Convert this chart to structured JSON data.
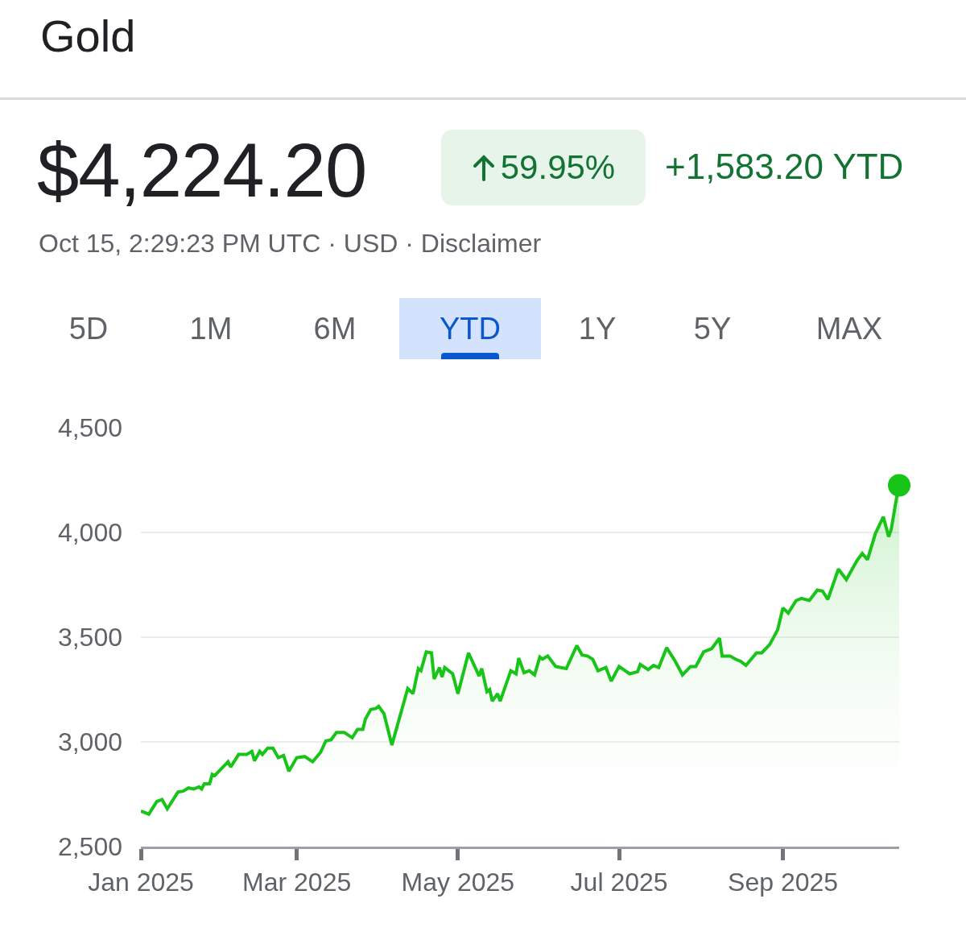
{
  "chart_data": {
    "type": "area",
    "title": "Gold",
    "subtitle": "Oct 15, 2:29:23 PM UTC · USD · Disclaimer",
    "annotations": [
      "$4,224.20",
      "59.95%",
      "+1,583.20 YTD",
      "5D",
      "1M",
      "6M",
      "YTD",
      "1Y",
      "5Y",
      "MAX"
    ],
    "x": [
      "2025-01-01",
      "2025-01-04",
      "2025-01-07",
      "2025-01-09",
      "2025-01-11",
      "2025-01-15",
      "2025-01-17",
      "2025-01-19",
      "2025-01-21",
      "2025-01-23",
      "2025-01-24",
      "2025-01-25",
      "2025-01-27",
      "2025-01-28",
      "2025-01-29",
      "2025-02-03",
      "2025-02-04",
      "2025-02-07",
      "2025-02-10",
      "2025-02-12",
      "2025-02-13",
      "2025-02-15",
      "2025-02-16",
      "2025-02-18",
      "2025-02-20",
      "2025-02-22",
      "2025-02-24",
      "2025-02-26",
      "2025-03-01",
      "2025-03-04",
      "2025-03-07",
      "2025-03-10",
      "2025-03-12",
      "2025-03-14",
      "2025-03-16",
      "2025-03-19",
      "2025-03-22",
      "2025-03-24",
      "2025-03-26",
      "2025-03-27",
      "2025-03-29",
      "2025-03-31",
      "2025-04-01",
      "2025-04-03",
      "2025-04-06",
      "2025-04-12",
      "2025-04-14",
      "2025-04-16",
      "2025-04-17",
      "2025-04-19",
      "2025-04-21",
      "2025-04-22",
      "2025-04-24",
      "2025-04-25",
      "2025-04-26",
      "2025-04-29",
      "2025-05-01",
      "2025-05-05",
      "2025-05-07",
      "2025-05-09",
      "2025-05-10",
      "2025-05-12",
      "2025-05-13",
      "2025-05-14",
      "2025-05-16",
      "2025-05-17",
      "2025-05-21",
      "2025-05-23",
      "2025-05-24",
      "2025-05-26",
      "2025-05-28",
      "2025-05-30",
      "2025-06-01",
      "2025-06-02",
      "2025-06-04",
      "2025-06-07",
      "2025-06-11",
      "2025-06-15",
      "2025-06-17",
      "2025-06-19",
      "2025-06-21",
      "2025-06-23",
      "2025-06-26",
      "2025-06-28",
      "2025-07-01",
      "2025-07-05",
      "2025-07-08",
      "2025-07-09",
      "2025-07-12",
      "2025-07-14",
      "2025-07-16",
      "2025-07-19",
      "2025-07-22",
      "2025-07-25",
      "2025-07-28",
      "2025-07-30",
      "2025-08-02",
      "2025-08-05",
      "2025-08-08",
      "2025-08-09",
      "2025-08-12",
      "2025-08-14",
      "2025-08-16",
      "2025-08-18",
      "2025-08-20",
      "2025-08-22",
      "2025-08-24",
      "2025-08-27",
      "2025-08-30",
      "2025-09-01",
      "2025-09-03",
      "2025-09-06",
      "2025-09-08",
      "2025-09-11",
      "2025-09-14",
      "2025-09-16",
      "2025-09-18",
      "2025-09-22",
      "2025-09-25",
      "2025-09-29",
      "2025-10-01",
      "2025-10-03",
      "2025-10-06",
      "2025-10-09",
      "2025-10-11",
      "2025-10-12",
      "2025-10-14",
      "2025-10-15"
    ],
    "series": [
      {
        "color": "#18c418",
        "values": [
          2670,
          2655,
          2715,
          2725,
          2680,
          2760,
          2765,
          2780,
          2775,
          2785,
          2775,
          2800,
          2800,
          2845,
          2840,
          2905,
          2880,
          2940,
          2940,
          2955,
          2910,
          2955,
          2940,
          2970,
          2970,
          2925,
          2935,
          2860,
          2925,
          2930,
          2905,
          2950,
          3005,
          3010,
          3045,
          3045,
          3020,
          3060,
          3060,
          3110,
          3155,
          3160,
          3170,
          3135,
          2985,
          3255,
          3230,
          3350,
          3340,
          3430,
          3425,
          3300,
          3355,
          3310,
          3355,
          3325,
          3230,
          3425,
          3370,
          3315,
          3350,
          3240,
          3250,
          3195,
          3230,
          3195,
          3340,
          3325,
          3400,
          3330,
          3340,
          3320,
          3405,
          3395,
          3410,
          3360,
          3350,
          3460,
          3415,
          3410,
          3395,
          3340,
          3355,
          3290,
          3360,
          3325,
          3335,
          3370,
          3345,
          3365,
          3355,
          3450,
          3390,
          3320,
          3360,
          3360,
          3430,
          3445,
          3495,
          3410,
          3410,
          3395,
          3385,
          3365,
          3395,
          3425,
          3425,
          3465,
          3535,
          3640,
          3615,
          3675,
          3685,
          3675,
          3725,
          3720,
          3680,
          3825,
          3775,
          3865,
          3900,
          3870,
          3995,
          4075,
          3980,
          4015,
          4165,
          4225
        ]
      },
      {
        "type": "scatter",
        "color": "#18c418",
        "x": [
          "2025-10-15"
        ],
        "values": [
          4225
        ]
      }
    ],
    "xlim": [
      "2025-01-01",
      "2025-10-15"
    ],
    "xticks": [
      {
        "value": "2025-01-01",
        "label": "Jan 2025"
      },
      {
        "value": "2025-03-01",
        "label": "Mar 2025"
      },
      {
        "value": "2025-05-01",
        "label": "May 2025"
      },
      {
        "value": "2025-07-01",
        "label": "Jul 2025"
      },
      {
        "value": "2025-09-01",
        "label": "Sep 2025"
      }
    ],
    "ylim": [
      2500,
      4500
    ],
    "yticks": [
      {
        "value": 2500,
        "label": "2,500"
      },
      {
        "value": 3000,
        "label": "3,000"
      },
      {
        "value": 3500,
        "label": "3,500"
      },
      {
        "value": 4000,
        "label": "4,000"
      },
      {
        "value": 4500,
        "label": "4,500"
      }
    ],
    "grid": "y"
  }
}
